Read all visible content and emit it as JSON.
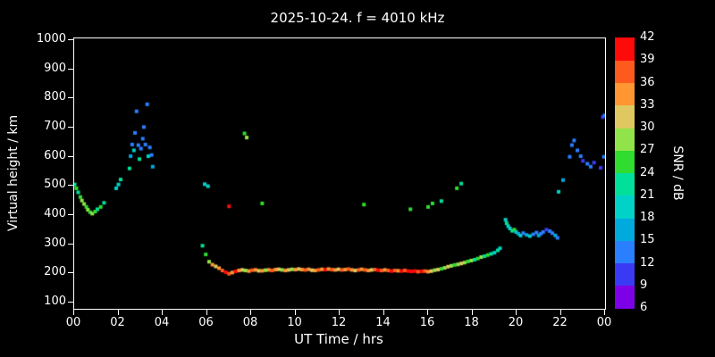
{
  "chart_data": {
    "type": "scatter",
    "title": "2025-10-24. f = 4010 kHz",
    "xlabel": "UT Time / hrs",
    "ylabel": "Virtual height / km",
    "colorbar_label": "SNR / dB",
    "xlim": [
      0,
      24
    ],
    "ylim": [
      100,
      1000
    ],
    "grid": false,
    "background": "#000000",
    "x_ticks": {
      "values": [
        0,
        2,
        4,
        6,
        8,
        10,
        12,
        14,
        16,
        18,
        20,
        22,
        24
      ],
      "labels": [
        "00",
        "02",
        "04",
        "06",
        "08",
        "10",
        "12",
        "14",
        "16",
        "18",
        "20",
        "22",
        "00"
      ]
    },
    "y_ticks": {
      "values": [
        1000,
        900,
        800,
        700,
        600,
        500,
        400,
        300,
        200,
        100
      ],
      "labels": [
        "1000",
        "900",
        "800",
        "700",
        "600",
        "500",
        "400",
        "300",
        "200",
        "100"
      ]
    },
    "colorbar": {
      "min": 6,
      "max": 42,
      "step": 3,
      "tick_labels_top_to_bottom": [
        "42",
        "39",
        "36",
        "33",
        "30",
        "27",
        "24",
        "21",
        "18",
        "15",
        "12",
        "9",
        "6"
      ],
      "colors_bottom_to_top": [
        "#7d00e6",
        "#3a3af5",
        "#2a7fff",
        "#00aadc",
        "#00d2c8",
        "#00e09b",
        "#30dc30",
        "#90e44a",
        "#e0c860",
        "#ff9632",
        "#ff5a1e",
        "#ff0a0a"
      ]
    },
    "point_units": [
      "ut_hours",
      "virtual_height_km",
      "snr_db"
    ],
    "points": [
      [
        0.02,
        505,
        21
      ],
      [
        0.1,
        492,
        24
      ],
      [
        0.18,
        478,
        21
      ],
      [
        0.28,
        462,
        24
      ],
      [
        0.35,
        450,
        27
      ],
      [
        0.45,
        438,
        27
      ],
      [
        0.55,
        428,
        24
      ],
      [
        0.62,
        418,
        27
      ],
      [
        0.72,
        410,
        24
      ],
      [
        0.82,
        405,
        27
      ],
      [
        0.95,
        412,
        24
      ],
      [
        1.05,
        420,
        21
      ],
      [
        1.2,
        428,
        24
      ],
      [
        1.35,
        442,
        21
      ],
      [
        1.9,
        492,
        18
      ],
      [
        2.0,
        505,
        18
      ],
      [
        2.1,
        522,
        21
      ],
      [
        2.5,
        560,
        21
      ],
      [
        2.55,
        602,
        15
      ],
      [
        2.62,
        642,
        12
      ],
      [
        2.7,
        622,
        18
      ],
      [
        2.75,
        682,
        12
      ],
      [
        2.82,
        756,
        12
      ],
      [
        2.9,
        640,
        12
      ],
      [
        2.95,
        592,
        21
      ],
      [
        3.02,
        628,
        12
      ],
      [
        3.1,
        662,
        12
      ],
      [
        3.15,
        702,
        12
      ],
      [
        3.22,
        642,
        12
      ],
      [
        3.3,
        780,
        12
      ],
      [
        3.35,
        602,
        18
      ],
      [
        3.42,
        632,
        12
      ],
      [
        3.5,
        606,
        12
      ],
      [
        3.55,
        566,
        15
      ],
      [
        5.9,
        506,
        18
      ],
      [
        6.05,
        499,
        18
      ],
      [
        7.0,
        430,
        39
      ],
      [
        7.7,
        680,
        24
      ],
      [
        7.8,
        666,
        27
      ],
      [
        8.5,
        440,
        24
      ],
      [
        13.1,
        436,
        24
      ],
      [
        15.2,
        420,
        24
      ],
      [
        16.0,
        428,
        24
      ],
      [
        16.2,
        440,
        24
      ],
      [
        16.6,
        448,
        21
      ],
      [
        17.3,
        492,
        24
      ],
      [
        17.5,
        508,
        21
      ],
      [
        19.5,
        384,
        18
      ],
      [
        19.55,
        372,
        21
      ],
      [
        19.62,
        362,
        18
      ],
      [
        19.7,
        354,
        18
      ],
      [
        19.8,
        346,
        21
      ],
      [
        19.9,
        350,
        24
      ],
      [
        19.98,
        342,
        18
      ],
      [
        20.08,
        336,
        15
      ],
      [
        20.18,
        330,
        18
      ],
      [
        20.3,
        338,
        12
      ],
      [
        20.45,
        332,
        15
      ],
      [
        20.6,
        328,
        18
      ],
      [
        20.75,
        334,
        12
      ],
      [
        20.9,
        340,
        12
      ],
      [
        21.0,
        330,
        15
      ],
      [
        21.1,
        336,
        12
      ],
      [
        21.2,
        342,
        12
      ],
      [
        21.35,
        350,
        9
      ],
      [
        21.5,
        345,
        12
      ],
      [
        21.62,
        338,
        12
      ],
      [
        21.75,
        330,
        15
      ],
      [
        21.85,
        322,
        12
      ],
      [
        21.9,
        480,
        18
      ],
      [
        22.1,
        520,
        15
      ],
      [
        22.4,
        600,
        12
      ],
      [
        22.5,
        640,
        12
      ],
      [
        22.6,
        656,
        12
      ],
      [
        22.75,
        622,
        12
      ],
      [
        22.9,
        602,
        12
      ],
      [
        23.0,
        586,
        9
      ],
      [
        23.2,
        576,
        12
      ],
      [
        23.35,
        566,
        12
      ],
      [
        23.5,
        580,
        9
      ],
      [
        23.8,
        562,
        9
      ],
      [
        23.9,
        736,
        9
      ],
      [
        23.98,
        742,
        12
      ],
      [
        23.95,
        600,
        12
      ],
      [
        5.8,
        295,
        21
      ],
      [
        5.95,
        265,
        24
      ],
      [
        6.1,
        240,
        27
      ],
      [
        6.25,
        230,
        33
      ],
      [
        6.4,
        224,
        30
      ],
      [
        6.55,
        218,
        33
      ],
      [
        6.7,
        210,
        36
      ],
      [
        6.85,
        204,
        39
      ],
      [
        7.0,
        199,
        36
      ],
      [
        7.15,
        203,
        33
      ],
      [
        7.3,
        207,
        39
      ],
      [
        7.45,
        210,
        33
      ],
      [
        7.6,
        212,
        30
      ],
      [
        7.75,
        210,
        27
      ],
      [
        7.9,
        208,
        33
      ],
      [
        8.05,
        211,
        36
      ],
      [
        8.2,
        212,
        33
      ],
      [
        8.35,
        209,
        30
      ],
      [
        8.5,
        209,
        33
      ],
      [
        8.65,
        211,
        27
      ],
      [
        8.8,
        212,
        33
      ],
      [
        8.95,
        210,
        36
      ],
      [
        9.1,
        213,
        33
      ],
      [
        9.25,
        214,
        30
      ],
      [
        9.4,
        212,
        27
      ],
      [
        9.55,
        210,
        33
      ],
      [
        9.7,
        212,
        30
      ],
      [
        9.85,
        214,
        27
      ],
      [
        10.0,
        213,
        33
      ],
      [
        10.15,
        215,
        30
      ],
      [
        10.3,
        213,
        33
      ],
      [
        10.45,
        212,
        36
      ],
      [
        10.6,
        214,
        33
      ],
      [
        10.75,
        211,
        30
      ],
      [
        10.9,
        210,
        33
      ],
      [
        11.05,
        212,
        36
      ],
      [
        11.2,
        214,
        33
      ],
      [
        11.35,
        213,
        39
      ],
      [
        11.5,
        215,
        33
      ],
      [
        11.65,
        213,
        36
      ],
      [
        11.8,
        212,
        33
      ],
      [
        11.95,
        214,
        30
      ],
      [
        12.1,
        212,
        36
      ],
      [
        12.25,
        213,
        33
      ],
      [
        12.4,
        215,
        36
      ],
      [
        12.55,
        212,
        33
      ],
      [
        12.7,
        210,
        30
      ],
      [
        12.85,
        212,
        36
      ],
      [
        13.0,
        214,
        33
      ],
      [
        13.15,
        212,
        36
      ],
      [
        13.3,
        210,
        33
      ],
      [
        13.45,
        212,
        30
      ],
      [
        13.6,
        213,
        36
      ],
      [
        13.75,
        211,
        39
      ],
      [
        13.9,
        210,
        36
      ],
      [
        14.05,
        212,
        33
      ],
      [
        14.2,
        210,
        36
      ],
      [
        14.35,
        208,
        39
      ],
      [
        14.5,
        210,
        36
      ],
      [
        14.65,
        209,
        33
      ],
      [
        14.8,
        208,
        39
      ],
      [
        14.95,
        210,
        36
      ],
      [
        15.1,
        208,
        39
      ],
      [
        15.25,
        207,
        42
      ],
      [
        15.4,
        208,
        39
      ],
      [
        15.55,
        206,
        36
      ],
      [
        15.7,
        207,
        39
      ],
      [
        15.85,
        208,
        36
      ],
      [
        16.0,
        206,
        33
      ],
      [
        16.15,
        208,
        30
      ],
      [
        16.3,
        211,
        27
      ],
      [
        16.45,
        213,
        30
      ],
      [
        16.6,
        216,
        24
      ],
      [
        16.75,
        219,
        27
      ],
      [
        16.9,
        223,
        30
      ],
      [
        17.05,
        226,
        27
      ],
      [
        17.2,
        229,
        24
      ],
      [
        17.35,
        231,
        27
      ],
      [
        17.5,
        234,
        30
      ],
      [
        17.65,
        237,
        27
      ],
      [
        17.8,
        241,
        24
      ],
      [
        17.95,
        244,
        27
      ],
      [
        18.1,
        247,
        21
      ],
      [
        18.25,
        251,
        24
      ],
      [
        18.4,
        256,
        27
      ],
      [
        18.55,
        259,
        21
      ],
      [
        18.7,
        263,
        24
      ],
      [
        18.85,
        267,
        21
      ],
      [
        19.0,
        271,
        18
      ],
      [
        19.15,
        279,
        21
      ],
      [
        19.25,
        286,
        18
      ]
    ]
  }
}
